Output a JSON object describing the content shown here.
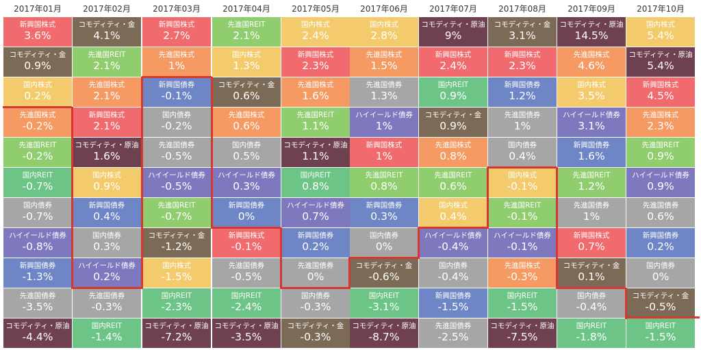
{
  "colors": {
    "新興国株式": "#f06a6e",
    "先進国株式": "#f49a62",
    "国内株式": "#f4cb6c",
    "国内REIT": "#6cc486",
    "先進国REIT": "#8fcd6e",
    "新興国債券": "#6f86c6",
    "国内債券": "#a6a6a6",
    "先進国債券": "#a6a6a6",
    "ハイイールド債券": "#7e78bf",
    "コモディティ・金": "#7b6a55",
    "コモディティ・原油": "#6e4050"
  },
  "months": [
    {
      "label": "2017年01月",
      "cells": [
        {
          "name": "新興国株式",
          "value": "3.6%"
        },
        {
          "name": "コモディティ・金",
          "value": "0.9%"
        },
        {
          "name": "国内株式",
          "value": "0.2%"
        },
        {
          "name": "先進国株式",
          "value": "-0.2%"
        },
        {
          "name": "先進国REIT",
          "value": "-0.2%"
        },
        {
          "name": "国内REIT",
          "value": "-0.7%"
        },
        {
          "name": "国内債券",
          "value": "-0.7%"
        },
        {
          "name": "ハイイールド債券",
          "value": "-0.8%"
        },
        {
          "name": "新興国債券",
          "value": "-1.3%"
        },
        {
          "name": "先進国債券",
          "value": "-3.5%"
        },
        {
          "name": "コモディティ・原油",
          "value": "-4.4%"
        }
      ]
    },
    {
      "label": "2017年02月",
      "cells": [
        {
          "name": "コモディティ・金",
          "value": "4.1%"
        },
        {
          "name": "先進国REIT",
          "value": "2.1%"
        },
        {
          "name": "先進国株式",
          "value": "2.1%"
        },
        {
          "name": "新興国株式",
          "value": "2.1%"
        },
        {
          "name": "コモディティ・原油",
          "value": "1.6%"
        },
        {
          "name": "国内株式",
          "value": "0.9%"
        },
        {
          "name": "新興国債券",
          "value": "0.4%"
        },
        {
          "name": "国内債券",
          "value": "0.3%"
        },
        {
          "name": "ハイイールド債券",
          "value": "0.2%"
        },
        {
          "name": "先進国債券",
          "value": "-0.3%"
        },
        {
          "name": "国内REIT",
          "value": "-1.4%"
        }
      ]
    },
    {
      "label": "2017年03月",
      "cells": [
        {
          "name": "新興国株式",
          "value": "2.7%"
        },
        {
          "name": "先進国株式",
          "value": "1%"
        },
        {
          "name": "新興国債券",
          "value": "-0.1%"
        },
        {
          "name": "国内債券",
          "value": "-0.2%"
        },
        {
          "name": "先進国債券",
          "value": "-0.5%"
        },
        {
          "name": "ハイイールド債券",
          "value": "-0.5%"
        },
        {
          "name": "先進国REIT",
          "value": "-0.7%"
        },
        {
          "name": "コモディティ・金",
          "value": "-1.2%"
        },
        {
          "name": "国内株式",
          "value": "-1.5%"
        },
        {
          "name": "国内REIT",
          "value": "-2.3%"
        },
        {
          "name": "コモディティ・原油",
          "value": "-7.2%"
        }
      ]
    },
    {
      "label": "2017年04月",
      "cells": [
        {
          "name": "先進国REIT",
          "value": "2.1%"
        },
        {
          "name": "国内株式",
          "value": "1.3%"
        },
        {
          "name": "コモディティ・金",
          "value": "0.6%"
        },
        {
          "name": "先進国株式",
          "value": "0.6%"
        },
        {
          "name": "国内債券",
          "value": "0.5%"
        },
        {
          "name": "ハイイールド債券",
          "value": "0.3%"
        },
        {
          "name": "新興国債券",
          "value": "0%"
        },
        {
          "name": "新興国株式",
          "value": "-0.1%"
        },
        {
          "name": "先進国債券",
          "value": "-0.5%"
        },
        {
          "name": "国内REIT",
          "value": "-2.4%"
        },
        {
          "name": "コモディティ・原油",
          "value": "-3.5%"
        }
      ]
    },
    {
      "label": "2017年05月",
      "cells": [
        {
          "name": "国内株式",
          "value": "2.4%"
        },
        {
          "name": "新興国株式",
          "value": "2.3%"
        },
        {
          "name": "先進国株式",
          "value": "1.6%"
        },
        {
          "name": "先進国REIT",
          "value": "1.1%"
        },
        {
          "name": "コモディティ・原油",
          "value": "1.1%"
        },
        {
          "name": "国内REIT",
          "value": "0.8%"
        },
        {
          "name": "ハイイールド債券",
          "value": "0.7%"
        },
        {
          "name": "新興国債券",
          "value": "0.2%"
        },
        {
          "name": "先進国債券",
          "value": "0%"
        },
        {
          "name": "国内債券",
          "value": "-0.3%"
        },
        {
          "name": "コモディティ・金",
          "value": "-0.3%"
        }
      ]
    },
    {
      "label": "2017年06月",
      "cells": [
        {
          "name": "国内株式",
          "value": "2.8%"
        },
        {
          "name": "先進国株式",
          "value": "1.5%"
        },
        {
          "name": "先進国債券",
          "value": "1.3%"
        },
        {
          "name": "ハイイールド債券",
          "value": "1%"
        },
        {
          "name": "新興国株式",
          "value": "1%"
        },
        {
          "name": "先進国REIT",
          "value": "0.8%"
        },
        {
          "name": "新興国債券",
          "value": "0.3%"
        },
        {
          "name": "国内債券",
          "value": "0%"
        },
        {
          "name": "コモディティ・金",
          "value": "-0.6%"
        },
        {
          "name": "国内REIT",
          "value": "-3.1%"
        },
        {
          "name": "コモディティ・原油",
          "value": "-8.7%"
        }
      ]
    },
    {
      "label": "2017年07月",
      "cells": [
        {
          "name": "コモディティ・原油",
          "value": "9%"
        },
        {
          "name": "新興国株式",
          "value": "2.4%"
        },
        {
          "name": "国内REIT",
          "value": "0.9%"
        },
        {
          "name": "コモディティ・金",
          "value": "0.9%"
        },
        {
          "name": "先進国株式",
          "value": "0.8%"
        },
        {
          "name": "先進国REIT",
          "value": "0.6%"
        },
        {
          "name": "国内株式",
          "value": "0.4%"
        },
        {
          "name": "ハイイールド債券",
          "value": "-0.4%"
        },
        {
          "name": "国内債券",
          "value": "-0.4%"
        },
        {
          "name": "新興国債券",
          "value": "-1.5%"
        },
        {
          "name": "先進国債券",
          "value": "-2.5%"
        }
      ]
    },
    {
      "label": "2017年08月",
      "cells": [
        {
          "name": "コモディティ・金",
          "value": "3.1%"
        },
        {
          "name": "新興国株式",
          "value": "2.3%"
        },
        {
          "name": "新興国債券",
          "value": "1.2%"
        },
        {
          "name": "先進国債券",
          "value": "1%"
        },
        {
          "name": "国内債券",
          "value": "0.4%"
        },
        {
          "name": "国内株式",
          "value": "-0.1%"
        },
        {
          "name": "先進国REIT",
          "value": "-0.1%"
        },
        {
          "name": "ハイイールド債券",
          "value": "-0.1%"
        },
        {
          "name": "先進国株式",
          "value": "-0.3%"
        },
        {
          "name": "国内REIT",
          "value": "-1.5%"
        },
        {
          "name": "コモディティ・原油",
          "value": "-7.5%"
        }
      ]
    },
    {
      "label": "2017年09月",
      "cells": [
        {
          "name": "コモディティ・原油",
          "value": "14.5%"
        },
        {
          "name": "先進国株式",
          "value": "4.6%"
        },
        {
          "name": "国内株式",
          "value": "3.5%"
        },
        {
          "name": "ハイイールド債券",
          "value": "3.1%"
        },
        {
          "name": "新興国債券",
          "value": "1.6%"
        },
        {
          "name": "先進国REIT",
          "value": "1.2%"
        },
        {
          "name": "先進国債券",
          "value": "1%"
        },
        {
          "name": "新興国株式",
          "value": "0.7%"
        },
        {
          "name": "コモディティ・金",
          "value": "0.1%"
        },
        {
          "name": "国内債券",
          "value": "-0.4%"
        },
        {
          "name": "国内REIT",
          "value": "-1.8%"
        }
      ]
    },
    {
      "label": "2017年10月",
      "cells": [
        {
          "name": "国内株式",
          "value": "5.4%"
        },
        {
          "name": "コモディティ・原油",
          "value": "5.4%"
        },
        {
          "name": "新興国株式",
          "value": "4.5%"
        },
        {
          "name": "先進国株式",
          "value": "2.3%"
        },
        {
          "name": "先進国REIT",
          "value": "0.9%"
        },
        {
          "name": "ハイイールド債券",
          "value": "0.9%"
        },
        {
          "name": "先進国債券",
          "value": "0.6%"
        },
        {
          "name": "新興国債券",
          "value": "0.2%"
        },
        {
          "name": "国内債券",
          "value": "0%"
        },
        {
          "name": "コモディティ・金",
          "value": "-0.5%"
        },
        {
          "name": "国内REIT",
          "value": "-1.5%"
        }
      ]
    }
  ]
}
